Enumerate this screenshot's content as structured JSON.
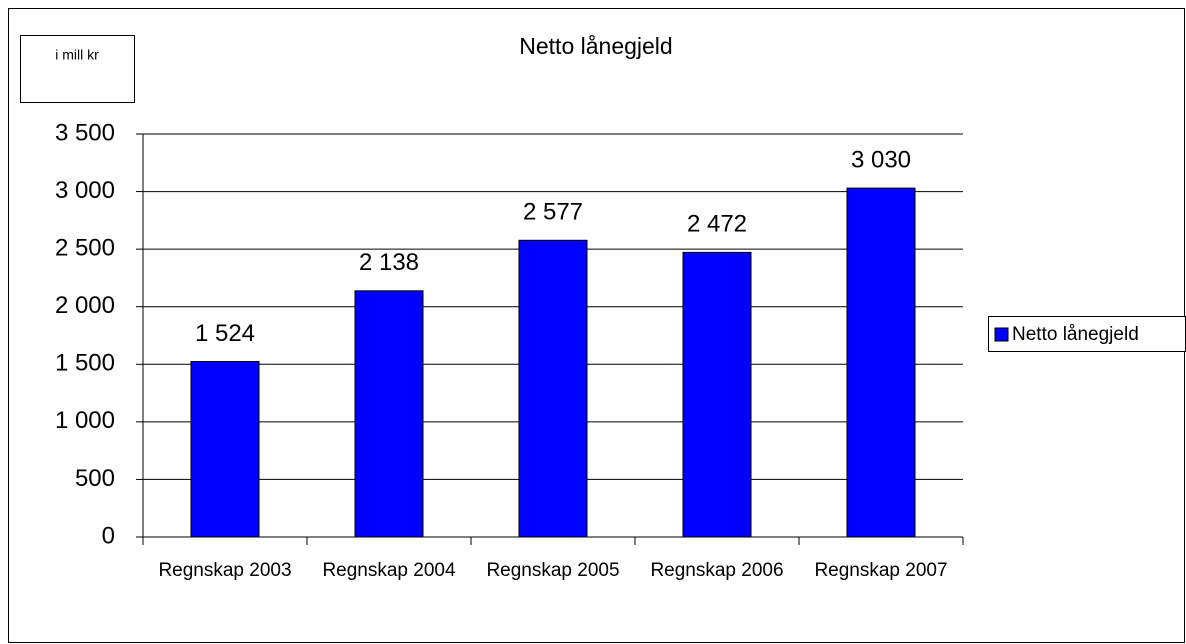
{
  "chart_data": {
    "type": "bar",
    "title": "Netto lånegjeld",
    "unit_label": "i mill kr",
    "categories": [
      "Regnskap 2003",
      "Regnskap 2004",
      "Regnskap 2005",
      "Regnskap 2006",
      "Regnskap 2007"
    ],
    "series": [
      {
        "name": "Netto lånegjeld",
        "color": "#0000ff",
        "values": [
          1524,
          2138,
          2577,
          2472,
          3030
        ],
        "value_labels": [
          "1 524",
          "2 138",
          "2 577",
          "2 472",
          "3 030"
        ]
      }
    ],
    "ylim": [
      0,
      3500
    ],
    "yticks": [
      0,
      500,
      {
        "value": 1000,
        "label": "1 000"
      },
      {
        "value": 1500,
        "label": "1 500"
      },
      {
        "value": 2000,
        "label": "2 000"
      },
      {
        "value": 2500,
        "label": "2 500"
      },
      {
        "value": 3000,
        "label": "3 000"
      },
      {
        "value": 3500,
        "label": "3 500"
      }
    ],
    "grid": true,
    "legend": "right"
  }
}
